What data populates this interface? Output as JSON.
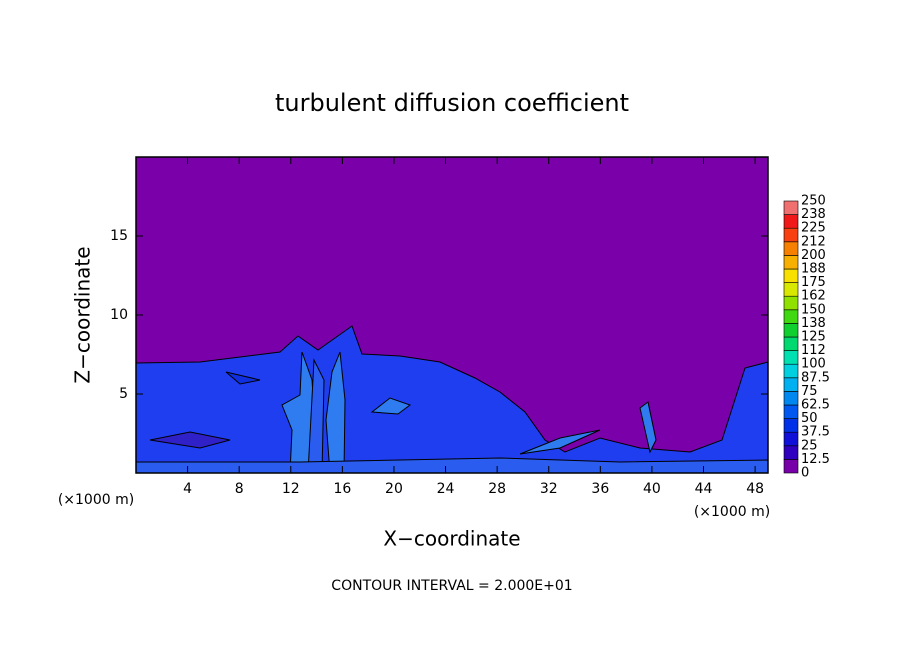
{
  "chart_data": {
    "type": "contour",
    "title": "turbulent diffusion coefficient",
    "x_label": "X−coordinate",
    "y_label": "Z−coordinate",
    "x_unit": "(×1000 m)",
    "footer": "CONTOUR INTERVAL = 2.000E+01",
    "xlim": [
      0,
      49
    ],
    "ylim": [
      0,
      20
    ],
    "xticks": [
      4,
      8,
      12,
      16,
      20,
      24,
      28,
      32,
      36,
      40,
      44,
      48
    ],
    "yticks": [
      5,
      10,
      15
    ],
    "colorbar": {
      "ticks": [
        0,
        12.5,
        25,
        37.5,
        50,
        62.5,
        75,
        87.5,
        100,
        {
          "value": 112.5,
          "label": "112"
        },
        125,
        {
          "value": 137.5,
          "label": "138"
        },
        150,
        {
          "value": 162.5,
          "label": "162"
        },
        175,
        {
          "value": 187.5,
          "label": "188"
        },
        200,
        {
          "value": 212.5,
          "label": "212"
        },
        225,
        {
          "value": 237.5,
          "label": "238"
        },
        250
      ],
      "colors": [
        "#7800a8",
        "#3000c0",
        "#1010d8",
        "#0030e8",
        "#0058f0",
        "#0088f0",
        "#00b0f0",
        "#00d0e0",
        "#00e0b0",
        "#00d870",
        "#10d030",
        "#40d810",
        "#90e000",
        "#d8e800",
        "#f8e000",
        "#f8b000",
        "#f88000",
        "#f84010",
        "#f01818",
        "#f07070"
      ]
    }
  }
}
